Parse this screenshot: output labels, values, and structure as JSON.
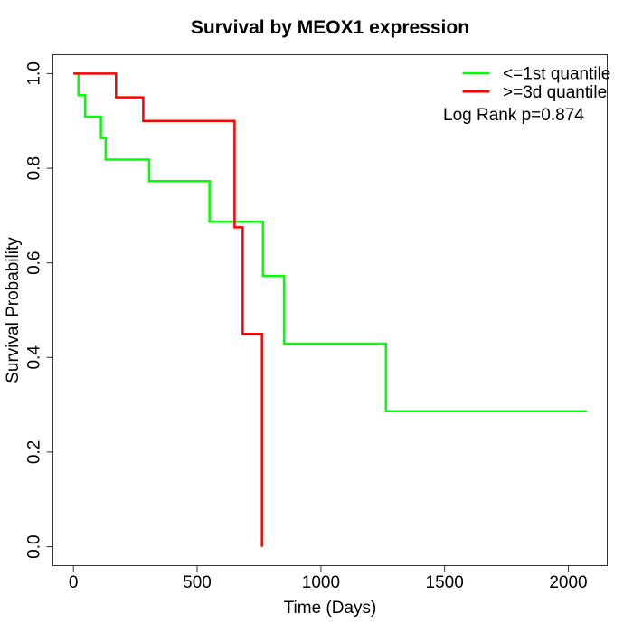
{
  "title": "Survival by MEOX1 expression",
  "axes": {
    "x_label": "Time (Days)",
    "y_label": "Survival Probability",
    "x_ticks": [
      "0",
      "500",
      "1000",
      "1500",
      "2000"
    ],
    "y_ticks": [
      "0.0",
      "0.2",
      "0.4",
      "0.6",
      "0.8",
      "1.0"
    ]
  },
  "legend": {
    "items": [
      {
        "label": "<=1st quantile",
        "color": "#00ff00"
      },
      {
        "label": ">=3d quantile",
        "color": "#ff0000"
      }
    ],
    "note": "Log Rank p=0.874"
  },
  "chart_data": {
    "type": "line",
    "subtype": "kaplan-meier-survival-step",
    "title": "Survival by MEOX1 expression",
    "xlabel": "Time (Days)",
    "ylabel": "Survival Probability",
    "xlim": [
      0,
      2074
    ],
    "ylim": [
      0,
      1
    ],
    "x_ticks": [
      0,
      500,
      1000,
      1500,
      2000
    ],
    "y_ticks": [
      0.0,
      0.2,
      0.4,
      0.6,
      0.8,
      1.0
    ],
    "grid": false,
    "legend_position": "top-right",
    "annotation": "Log Rank p=0.874",
    "series": [
      {
        "name": "<=1st quantile",
        "color": "#00ff00",
        "step_points": [
          [
            0,
            1.0
          ],
          [
            20,
            0.9545
          ],
          [
            47,
            0.9091
          ],
          [
            111,
            0.8636
          ],
          [
            130,
            0.8182
          ],
          [
            306,
            0.7727
          ],
          [
            550,
            0.6869
          ],
          [
            766,
            0.5724
          ],
          [
            851,
            0.4293
          ],
          [
            1263,
            0.2862
          ],
          [
            2074,
            0.2862
          ]
        ]
      },
      {
        "name": ">=3d quantile",
        "color": "#ff0000",
        "step_points": [
          [
            0,
            1.0
          ],
          [
            172,
            0.95
          ],
          [
            282,
            0.9
          ],
          [
            651,
            0.675
          ],
          [
            684,
            0.45
          ],
          [
            762,
            0.0
          ]
        ]
      }
    ]
  }
}
